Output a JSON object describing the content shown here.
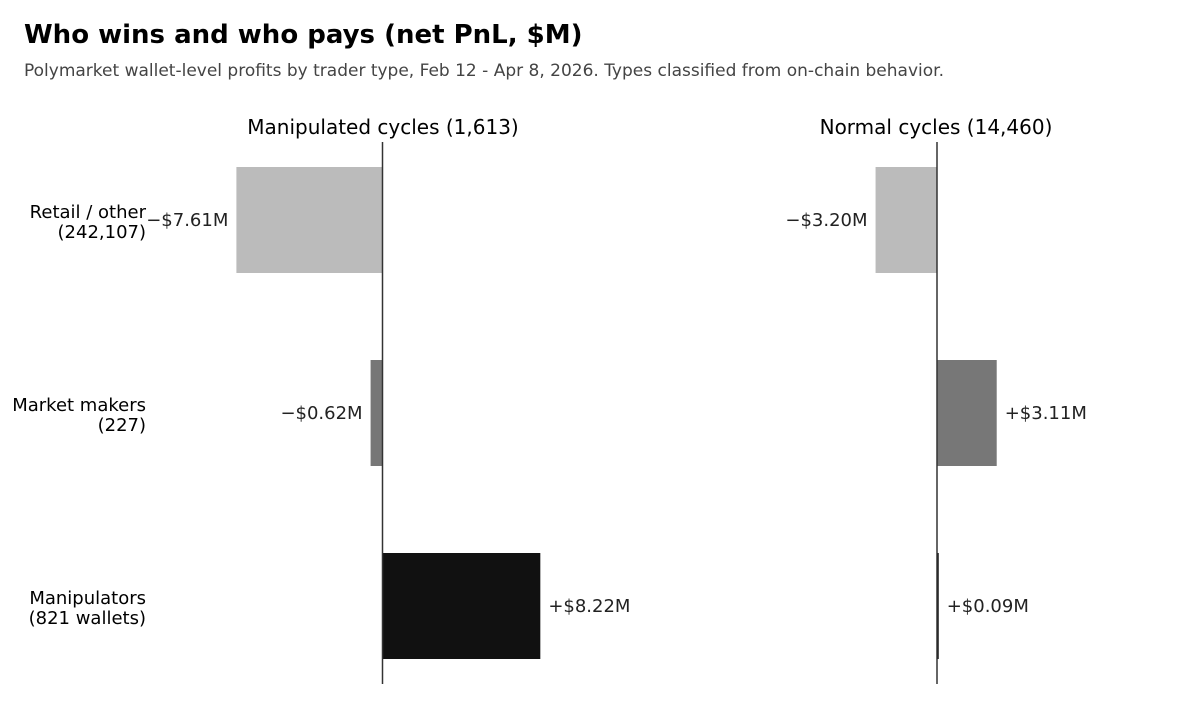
{
  "title": "Who wins and who pays (net PnL, $M)",
  "subtitle": "Polymarket wallet-level profits by trader type, Feb 12 - Apr 8, 2026. Types classified from on-chain behavior.",
  "chart_data": {
    "type": "bar",
    "orientation": "horizontal",
    "categories": [
      {
        "name": "Retail / other",
        "count": "(242,107)",
        "color": "#bbbbbb"
      },
      {
        "name": "Market makers",
        "count": "(227)",
        "color": "#777777"
      },
      {
        "name": "Manipulators",
        "count": "(821 wallets)",
        "color": "#111111"
      }
    ],
    "panels": [
      {
        "title": "Manipulated cycles (1,613)",
        "values": [
          -7.61,
          -0.62,
          8.22
        ],
        "labels": [
          "−$7.61M",
          "−$0.62M",
          "+$8.22M"
        ],
        "xlim": [
          -10,
          14
        ]
      },
      {
        "title": "Normal cycles (14,460)",
        "values": [
          -3.2,
          3.11,
          0.09
        ],
        "labels": [
          "−$3.20M",
          "+$3.11M",
          "+$0.09M"
        ],
        "xlim": [
          -10,
          14
        ]
      }
    ],
    "grid": false,
    "legend": "none"
  }
}
